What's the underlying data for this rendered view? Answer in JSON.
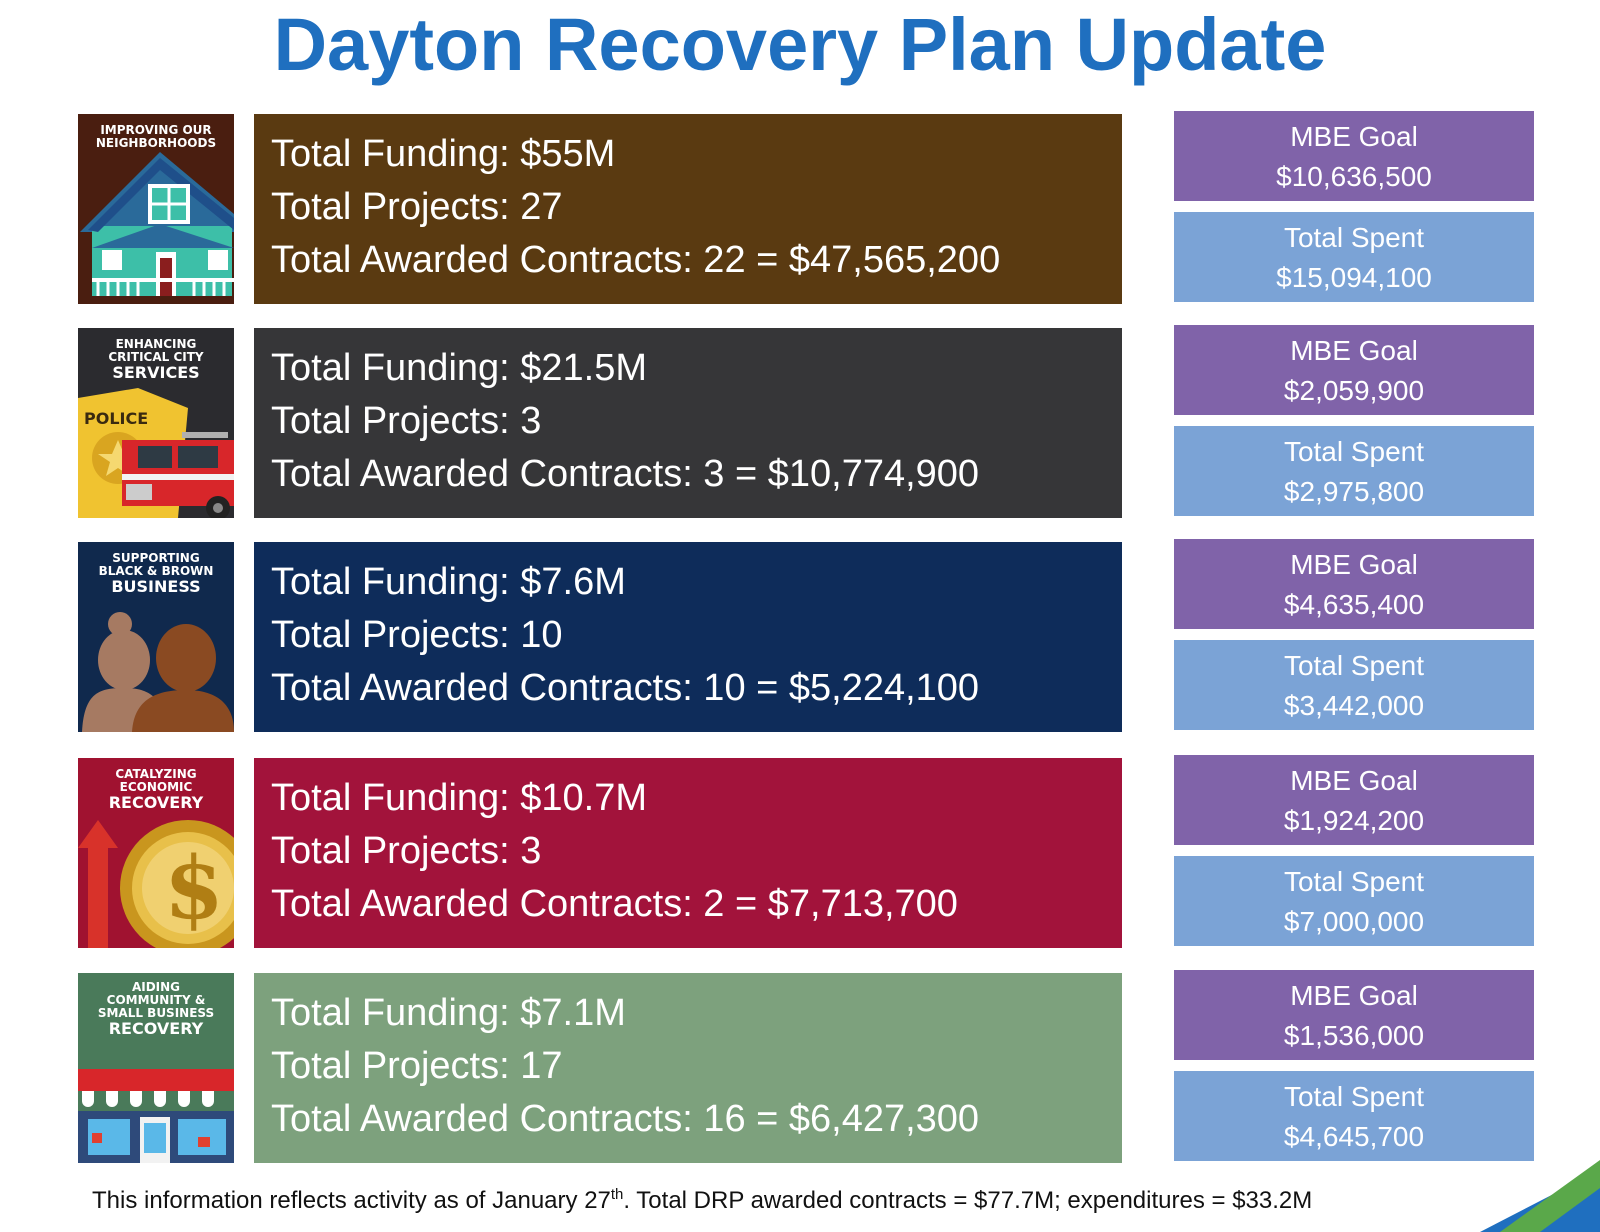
{
  "title": "Dayton Recovery Plan Update",
  "rows": [
    {
      "tile": {
        "line1": "Improving our",
        "line2": "Neighborhoods",
        "line3": "",
        "icon": "house-icon"
      },
      "funding": "Total Funding: $55M",
      "projects": "Total Projects: 27",
      "awarded": "Total Awarded Contracts: 22 = $47,565,200",
      "mbe_label": "MBE Goal",
      "mbe_value": "$10,636,500",
      "spent_label": "Total Spent",
      "spent_value": "$15,094,100",
      "color": "#5a3a11"
    },
    {
      "tile": {
        "line1": "Enhancing",
        "line2": "Critical City",
        "line3": "Services",
        "badge": "POLICE",
        "icon": "police-firetruck-icon"
      },
      "funding": "Total Funding: $21.5M",
      "projects": "Total Projects: 3",
      "awarded": "Total Awarded Contracts: 3 = $10,774,900",
      "mbe_label": "MBE Goal",
      "mbe_value": "$2,059,900",
      "spent_label": "Total Spent",
      "spent_value": "$2,975,800",
      "color": "#363638"
    },
    {
      "tile": {
        "line1": "Supporting",
        "line2": "Black & Brown",
        "line3": "Business",
        "icon": "people-silhouette-icon"
      },
      "funding": "Total Funding: $7.6M",
      "projects": "Total Projects: 10",
      "awarded": "Total Awarded Contracts: 10 = $5,224,100",
      "mbe_label": "MBE Goal",
      "mbe_value": "$4,635,400",
      "spent_label": "Total Spent",
      "spent_value": "$3,442,000",
      "color": "#0e2c5a"
    },
    {
      "tile": {
        "line1": "Catalyzing",
        "line2": "Economic",
        "line3": "Recovery",
        "icon": "dollar-coin-icon"
      },
      "funding": "Total Funding: $10.7M",
      "projects": "Total Projects: 3",
      "awarded": "Total Awarded Contracts: 2 = $7,713,700",
      "mbe_label": "MBE Goal",
      "mbe_value": "$1,924,200",
      "spent_label": "Total Spent",
      "spent_value": "$7,000,000",
      "color": "#a2133b"
    },
    {
      "tile": {
        "line1": "Aiding",
        "line2": "Community &",
        "line2b": "Small Business",
        "line3": "Recovery",
        "icon": "storefront-icon"
      },
      "funding": "Total Funding: $7.1M",
      "projects": "Total Projects: 17",
      "awarded": "Total Awarded Contracts: 16 = $6,427,300",
      "mbe_label": "MBE Goal",
      "mbe_value": "$1,536,000",
      "spent_label": "Total Spent",
      "spent_value": "$4,645,700",
      "color": "#7da17d"
    }
  ],
  "footnote": {
    "before": "This information reflects activity as of January 27",
    "sup": "th",
    "after": ". Total DRP awarded contracts = $77.7M; expenditures = $33.2M"
  }
}
